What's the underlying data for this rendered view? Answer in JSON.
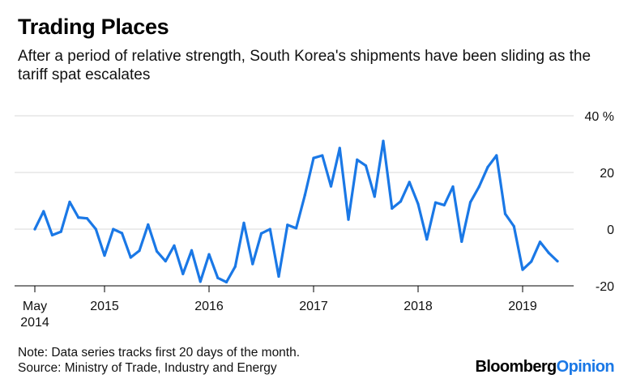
{
  "title": "Trading Places",
  "subtitle": "After a period of relative strength, South Korea's shipments have been sliding as the tariff spat escalates",
  "note": "Note: Data series tracks first 20 days of the month.",
  "source": "Source: Ministry of Trade, Industry and Energy",
  "logo": {
    "part1": "Bloomberg",
    "part2": "Opinion",
    "color1": "#000000",
    "color2": "#1a78e6"
  },
  "chart_data": {
    "type": "line",
    "title": "Trading Places",
    "xlabel": "",
    "ylabel": "",
    "ylim": [
      -20,
      40
    ],
    "y_ticks": [
      -20,
      0,
      20,
      40
    ],
    "y_tick_labels": [
      "-20",
      "0",
      "20",
      "40 %"
    ],
    "x_ticks": [
      {
        "month": 0,
        "label": [
          "May",
          "2014"
        ]
      },
      {
        "month": 8,
        "label": [
          "2015"
        ]
      },
      {
        "month": 20,
        "label": [
          "2016"
        ]
      },
      {
        "month": 32,
        "label": [
          "2017"
        ]
      },
      {
        "month": 44,
        "label": [
          "2018"
        ]
      },
      {
        "month": 56,
        "label": [
          "2019"
        ]
      }
    ],
    "x_range": [
      "2014-05",
      "2019-06"
    ],
    "grid": true,
    "line_color": "#1a78e6",
    "series": [
      {
        "x": [
          "2014-05",
          "2014-06",
          "2014-07",
          "2014-08",
          "2014-09",
          "2014-10",
          "2014-11",
          "2014-12",
          "2015-01",
          "2015-02",
          "2015-03",
          "2015-04",
          "2015-05",
          "2015-06",
          "2015-07",
          "2015-08",
          "2015-09",
          "2015-10",
          "2015-11",
          "2015-12",
          "2016-01",
          "2016-02",
          "2016-03",
          "2016-04",
          "2016-05",
          "2016-06",
          "2016-07",
          "2016-08",
          "2016-09",
          "2016-10",
          "2016-11",
          "2016-12",
          "2017-01",
          "2017-02",
          "2017-03",
          "2017-04",
          "2017-05",
          "2017-06",
          "2017-07",
          "2017-08",
          "2017-09",
          "2017-10",
          "2017-11",
          "2017-12",
          "2018-01",
          "2018-02",
          "2018-03",
          "2018-04",
          "2018-05",
          "2018-06",
          "2018-07",
          "2018-08",
          "2018-09",
          "2018-10",
          "2018-11",
          "2018-12",
          "2019-01",
          "2019-02",
          "2019-03",
          "2019-04",
          "2019-05"
        ],
        "values": [
          0.0,
          6.3,
          -2.1,
          -0.9,
          9.6,
          4.1,
          3.8,
          0.0,
          -9.3,
          0.0,
          -1.4,
          -10.0,
          -7.6,
          1.6,
          -7.8,
          -11.3,
          -5.8,
          -15.8,
          -7.5,
          -18.5,
          -8.9,
          -17.2,
          -18.7,
          -13.2,
          2.2,
          -12.3,
          -1.5,
          0.0,
          -16.7,
          1.5,
          0.3,
          12.0,
          25.1,
          26.0,
          15.1,
          28.6,
          3.4,
          24.5,
          22.4,
          11.5,
          31.1,
          7.3,
          9.8,
          16.6,
          8.9,
          -3.6,
          9.4,
          8.5,
          15.0,
          -4.4,
          9.5,
          15.0,
          21.9,
          26.0,
          5.4,
          1.0,
          -14.3,
          -11.4,
          -4.5,
          -8.4,
          -11.3
        ]
      }
    ]
  }
}
